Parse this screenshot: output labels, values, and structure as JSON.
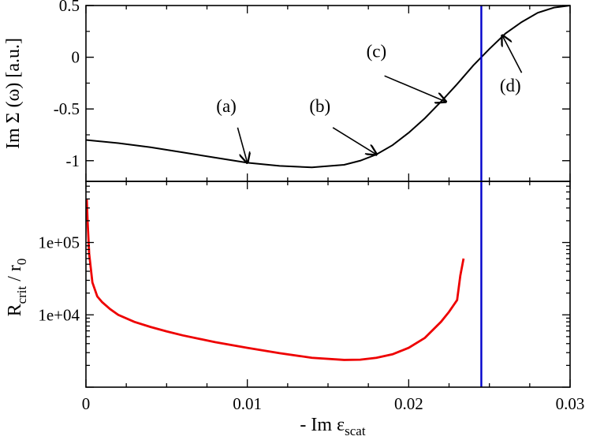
{
  "chart_data": [
    {
      "type": "line",
      "panel": "top",
      "ylabel": "Im Σ (ω)  [a.u.]",
      "xlim": [
        0,
        0.03
      ],
      "ylim": [
        -1.2,
        0.5
      ],
      "yticks": [
        0.5,
        0,
        -0.5,
        -1
      ],
      "ytick_labels": [
        "0.5",
        "0",
        "-0.5",
        "-1"
      ],
      "series": [
        {
          "name": "Im Sigma",
          "color": "#000000",
          "x": [
            0,
            0.002,
            0.004,
            0.006,
            0.008,
            0.01,
            0.012,
            0.014,
            0.016,
            0.017,
            0.018,
            0.019,
            0.02,
            0.021,
            0.022,
            0.023,
            0.024,
            0.025,
            0.026,
            0.027,
            0.028,
            0.029,
            0.03
          ],
          "y": [
            -0.8,
            -0.83,
            -0.87,
            -0.92,
            -0.97,
            -1.02,
            -1.05,
            -1.065,
            -1.04,
            -1.0,
            -0.94,
            -0.85,
            -0.73,
            -0.59,
            -0.43,
            -0.26,
            -0.08,
            0.08,
            0.23,
            0.34,
            0.43,
            0.48,
            0.5
          ]
        }
      ],
      "vline": {
        "x": 0.0245,
        "color": "#0000cc"
      },
      "annotations": [
        {
          "label": "(a)",
          "text_x": 0.0087,
          "text_y": -0.53,
          "tail_x": 0.0094,
          "tail_y": -0.68,
          "head_x": 0.01,
          "head_y": -1.02
        },
        {
          "label": "(b)",
          "text_x": 0.0145,
          "text_y": -0.53,
          "tail_x": 0.0153,
          "tail_y": -0.68,
          "head_x": 0.018,
          "head_y": -0.94
        },
        {
          "label": "(c)",
          "text_x": 0.018,
          "text_y": 0.0,
          "tail_x": 0.0185,
          "tail_y": -0.18,
          "head_x": 0.0223,
          "head_y": -0.43
        },
        {
          "label": "(d)",
          "text_x": 0.0263,
          "text_y": -0.33,
          "tail_x": 0.027,
          "tail_y": -0.15,
          "head_x": 0.0258,
          "head_y": 0.21
        }
      ]
    },
    {
      "type": "line",
      "panel": "bottom",
      "ylabel": "R",
      "ylabel_sub": "crit",
      "ylabel_mid": " / r",
      "ylabel_sub2": "0",
      "yscale": "log",
      "xlim": [
        0,
        0.03
      ],
      "ylim": [
        1000,
        700000
      ],
      "yticks": [
        100000,
        10000
      ],
      "ytick_labels": [
        "1e+05",
        "1e+04"
      ],
      "xticks": [
        0,
        0.01,
        0.02,
        0.03
      ],
      "xtick_labels": [
        "0",
        "0.01",
        "0.02",
        "0.03"
      ],
      "xlabel": "- Im  ε",
      "xlabel_sub": "scat",
      "series": [
        {
          "name": "R_crit / r0",
          "color": "#ee0000",
          "x": [
            5e-05,
            0.0001,
            0.0002,
            0.0004,
            0.0007,
            0.001,
            0.0015,
            0.002,
            0.003,
            0.004,
            0.005,
            0.006,
            0.008,
            0.01,
            0.012,
            0.014,
            0.016,
            0.017,
            0.018,
            0.019,
            0.02,
            0.021,
            0.022,
            0.0225,
            0.023,
            0.0232,
            0.0234
          ],
          "y": [
            400000,
            200000,
            70000,
            28000,
            18000,
            15000,
            12000,
            10000,
            8000,
            6800,
            5900,
            5200,
            4200,
            3500,
            2950,
            2550,
            2380,
            2400,
            2550,
            2850,
            3500,
            4800,
            8000,
            11000,
            16000,
            35000,
            60000
          ]
        }
      ],
      "vline": {
        "x": 0.0245,
        "color": "#0000cc"
      }
    }
  ]
}
